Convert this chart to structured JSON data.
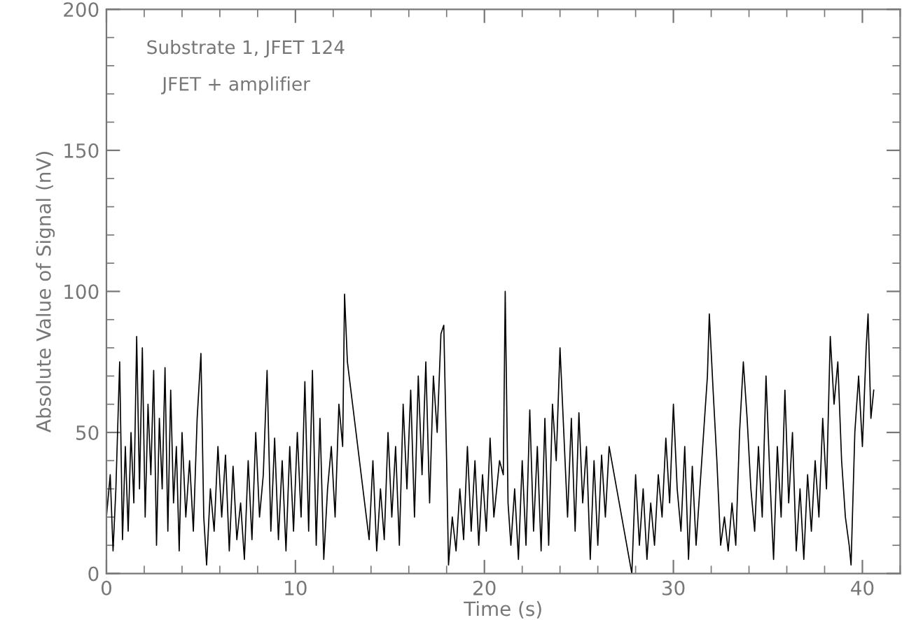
{
  "chart_data": {
    "type": "line",
    "xlabel": "Time (s)",
    "ylabel": "Absolute Value of Signal (nV)",
    "annotations": [
      "Substrate 1, JFET 124",
      "JFET + amplifier"
    ],
    "xlim": [
      0,
      42
    ],
    "xticks": [
      0,
      10,
      20,
      30,
      40
    ],
    "ylim": [
      0,
      200
    ],
    "yticks": [
      0,
      50,
      100,
      150,
      200
    ],
    "grid": false,
    "marker": "none",
    "line_style": "solid",
    "series": [
      {
        "color": "#000000",
        "x": [
          0.0,
          0.2,
          0.35,
          0.5,
          0.7,
          0.85,
          1.0,
          1.15,
          1.3,
          1.45,
          1.6,
          1.75,
          1.9,
          2.05,
          2.2,
          2.35,
          2.5,
          2.65,
          2.8,
          2.95,
          3.1,
          3.25,
          3.4,
          3.55,
          3.7,
          3.85,
          4.0,
          4.2,
          4.4,
          4.6,
          4.8,
          5.0,
          5.15,
          5.3,
          5.5,
          5.7,
          5.9,
          6.1,
          6.3,
          6.5,
          6.7,
          6.9,
          7.1,
          7.3,
          7.5,
          7.7,
          7.9,
          8.1,
          8.3,
          8.5,
          8.7,
          8.9,
          9.1,
          9.3,
          9.5,
          9.7,
          9.9,
          10.1,
          10.3,
          10.5,
          10.7,
          10.9,
          11.1,
          11.3,
          11.5,
          11.7,
          11.9,
          12.1,
          12.3,
          12.5,
          12.6,
          12.75,
          13.9,
          14.1,
          14.3,
          14.5,
          14.7,
          14.9,
          15.1,
          15.3,
          15.5,
          15.7,
          15.9,
          16.1,
          16.3,
          16.5,
          16.7,
          16.9,
          17.1,
          17.3,
          17.5,
          17.7,
          17.85,
          18.0,
          18.1,
          18.3,
          18.5,
          18.7,
          18.9,
          19.1,
          19.3,
          19.5,
          19.7,
          19.9,
          20.1,
          20.3,
          20.5,
          20.8,
          21.0,
          21.1,
          21.25,
          21.4,
          21.6,
          21.8,
          22.0,
          22.2,
          22.4,
          22.6,
          22.8,
          23.0,
          23.2,
          23.4,
          23.6,
          23.8,
          24.0,
          24.2,
          24.4,
          24.6,
          24.8,
          25.0,
          25.2,
          25.4,
          25.6,
          25.8,
          26.0,
          26.2,
          26.4,
          26.6,
          27.8,
          28.0,
          28.2,
          28.4,
          28.6,
          28.8,
          29.0,
          29.2,
          29.4,
          29.6,
          29.8,
          30.0,
          30.2,
          30.4,
          30.6,
          30.8,
          31.0,
          31.2,
          31.4,
          31.6,
          31.8,
          31.9,
          32.1,
          32.3,
          32.5,
          32.7,
          32.9,
          33.1,
          33.3,
          33.5,
          33.7,
          33.9,
          34.1,
          34.3,
          34.5,
          34.7,
          34.9,
          35.1,
          35.3,
          35.5,
          35.7,
          35.9,
          36.1,
          36.3,
          36.5,
          36.7,
          36.9,
          37.1,
          37.3,
          37.5,
          37.7,
          37.9,
          38.1,
          38.3,
          38.5,
          38.7,
          38.9,
          39.1,
          39.3,
          39.4,
          39.6,
          39.8,
          40.0,
          40.2,
          40.3,
          40.45,
          40.6
        ],
        "values": [
          20,
          35,
          8,
          30,
          75,
          12,
          45,
          15,
          50,
          25,
          84,
          30,
          80,
          20,
          60,
          35,
          72,
          10,
          55,
          30,
          73,
          15,
          65,
          25,
          45,
          8,
          50,
          20,
          40,
          15,
          55,
          78,
          20,
          3,
          30,
          15,
          45,
          20,
          42,
          8,
          38,
          12,
          25,
          5,
          40,
          12,
          50,
          20,
          35,
          72,
          15,
          48,
          12,
          40,
          8,
          45,
          15,
          50,
          20,
          68,
          15,
          72,
          10,
          55,
          5,
          30,
          45,
          20,
          60,
          45,
          99,
          75,
          12,
          40,
          8,
          30,
          12,
          50,
          20,
          45,
          10,
          60,
          30,
          65,
          20,
          70,
          35,
          75,
          25,
          70,
          50,
          85,
          88,
          40,
          3,
          20,
          8,
          30,
          12,
          45,
          15,
          40,
          10,
          35,
          15,
          48,
          20,
          40,
          35,
          100,
          25,
          10,
          30,
          5,
          40,
          10,
          58,
          15,
          45,
          8,
          55,
          10,
          60,
          40,
          80,
          50,
          20,
          55,
          15,
          57,
          25,
          45,
          5,
          40,
          10,
          42,
          20,
          45,
          0,
          35,
          10,
          30,
          5,
          25,
          10,
          35,
          20,
          48,
          25,
          60,
          30,
          15,
          45,
          5,
          38,
          10,
          30,
          50,
          70,
          92,
          65,
          40,
          10,
          20,
          8,
          25,
          10,
          50,
          75,
          55,
          30,
          15,
          45,
          20,
          70,
          35,
          5,
          45,
          20,
          65,
          25,
          50,
          8,
          30,
          5,
          35,
          15,
          40,
          20,
          55,
          30,
          84,
          60,
          75,
          40,
          20,
          10,
          3,
          50,
          70,
          45,
          80,
          92,
          55,
          65
        ]
      }
    ]
  }
}
